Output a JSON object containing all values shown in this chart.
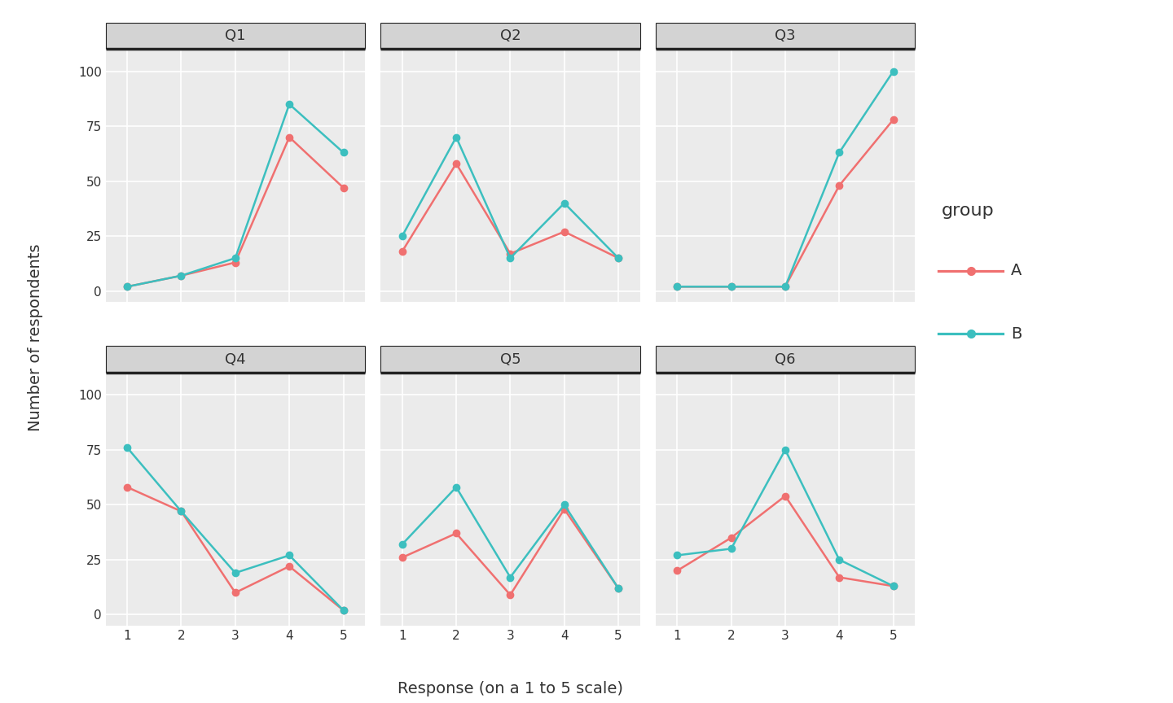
{
  "questions": [
    "Q1",
    "Q2",
    "Q3",
    "Q4",
    "Q5",
    "Q6"
  ],
  "x": [
    1,
    2,
    3,
    4,
    5
  ],
  "data": {
    "Q1": {
      "A": [
        2,
        7,
        13,
        70,
        47
      ],
      "B": [
        2,
        7,
        15,
        85,
        63
      ]
    },
    "Q2": {
      "A": [
        18,
        58,
        17,
        27,
        15
      ],
      "B": [
        25,
        70,
        15,
        40,
        15
      ]
    },
    "Q3": {
      "A": [
        2,
        2,
        2,
        48,
        78
      ],
      "B": [
        2,
        2,
        2,
        63,
        100
      ]
    },
    "Q4": {
      "A": [
        58,
        47,
        10,
        22,
        2
      ],
      "B": [
        76,
        47,
        19,
        27,
        2
      ]
    },
    "Q5": {
      "A": [
        26,
        37,
        9,
        48,
        12
      ],
      "B": [
        32,
        58,
        17,
        50,
        12
      ]
    },
    "Q6": {
      "A": [
        20,
        35,
        54,
        17,
        13
      ],
      "B": [
        27,
        30,
        75,
        25,
        13
      ]
    }
  },
  "color_A": "#F07070",
  "color_B": "#3CBFBF",
  "xlabel": "Response (on a 1 to 5 scale)",
  "ylabel": "Number of respondents",
  "legend_title": "group",
  "ylim": [
    -5,
    110
  ],
  "yticks": [
    0,
    25,
    50,
    75,
    100
  ],
  "xticks": [
    1,
    2,
    3,
    4,
    5
  ],
  "panel_bg": "#EBEBEB",
  "plot_bg": "#FFFFFF",
  "grid_color": "#FFFFFF",
  "facet_header_bg": "#D3D3D3",
  "facet_border_color": "#222222",
  "title_fontsize": 13,
  "label_fontsize": 14,
  "tick_fontsize": 11,
  "legend_fontsize": 13,
  "marker_size": 6,
  "line_width": 1.8
}
